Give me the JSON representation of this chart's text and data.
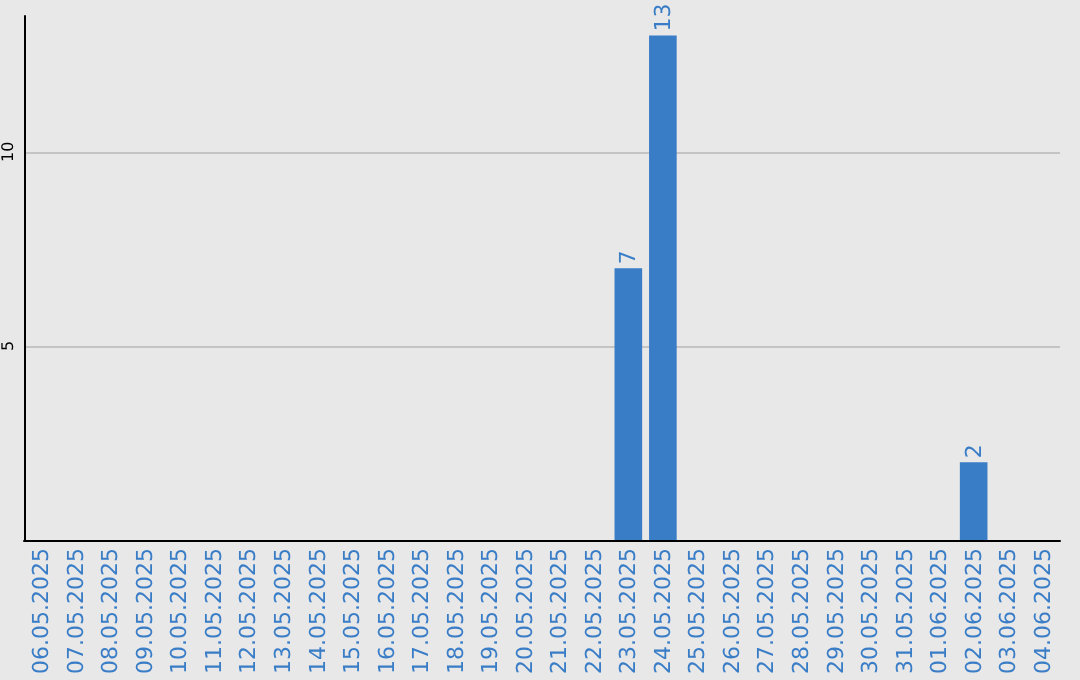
{
  "chart_data": {
    "type": "bar",
    "categories": [
      "06.05.2025",
      "07.05.2025",
      "08.05.2025",
      "09.05.2025",
      "10.05.2025",
      "11.05.2025",
      "12.05.2025",
      "13.05.2025",
      "14.05.2025",
      "15.05.2025",
      "16.05.2025",
      "17.05.2025",
      "18.05.2025",
      "19.05.2025",
      "20.05.2025",
      "21.05.2025",
      "22.05.2025",
      "23.05.2025",
      "24.05.2025",
      "25.05.2025",
      "26.05.2025",
      "27.05.2025",
      "28.05.2025",
      "29.05.2025",
      "30.05.2025",
      "31.05.2025",
      "01.06.2025",
      "02.06.2025",
      "03.06.2025",
      "04.06.2025"
    ],
    "values": [
      0,
      0,
      0,
      0,
      0,
      0,
      0,
      0,
      0,
      0,
      0,
      0,
      0,
      0,
      0,
      0,
      0,
      7,
      13,
      0,
      0,
      0,
      0,
      0,
      0,
      0,
      0,
      2,
      0,
      0
    ],
    "value_labels": [
      null,
      null,
      null,
      null,
      null,
      null,
      null,
      null,
      null,
      null,
      null,
      null,
      null,
      null,
      null,
      null,
      null,
      "7",
      "13",
      null,
      null,
      null,
      null,
      null,
      null,
      null,
      null,
      "2",
      null,
      null
    ],
    "color": "#3a7dc7",
    "ylim": [
      0,
      13.5
    ],
    "yticks": [
      {
        "value": 0,
        "label": null
      },
      5,
      10
    ],
    "grid": "y"
  }
}
